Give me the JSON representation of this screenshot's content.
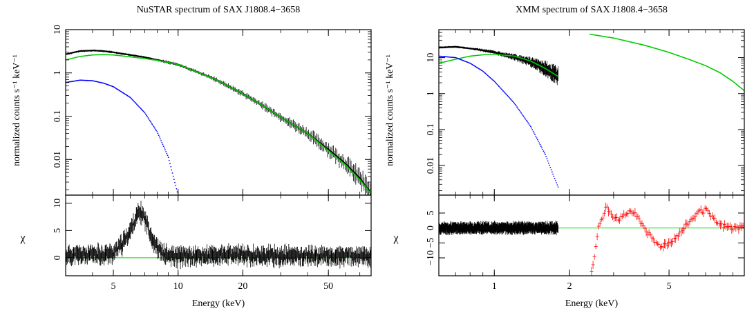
{
  "chart_data": [
    {
      "type": "line",
      "title": "NuSTAR spectrum of SAX J1808.4−3658",
      "xlabel": "Energy (keV)",
      "ylabel": "normalized counts s⁻¹ keV⁻¹",
      "xscale": "log",
      "yscale": "log",
      "xlim": [
        3,
        79
      ],
      "ylim": [
        0.0015,
        10
      ],
      "x_ticks": [
        5,
        10,
        20,
        50
      ],
      "x_tick_labels": [
        "5",
        "10",
        "20",
        "50"
      ],
      "y_ticks": [
        0.01,
        0.1,
        1,
        10
      ],
      "y_tick_labels": [
        "0.01",
        "0.1",
        "1",
        "10"
      ],
      "series": [
        {
          "color": "#000000",
          "style": "data",
          "x": [
            3,
            3.5,
            4,
            4.5,
            5,
            6,
            7,
            8,
            9,
            10,
            12,
            15,
            20,
            25,
            30,
            40,
            50,
            60,
            70,
            79
          ],
          "y": [
            2.7,
            3.2,
            3.3,
            3.2,
            3.0,
            2.6,
            2.3,
            2.0,
            1.75,
            1.55,
            1.1,
            0.7,
            0.33,
            0.17,
            0.095,
            0.04,
            0.017,
            0.008,
            0.0037,
            0.0016
          ]
        },
        {
          "color": "#00cc00",
          "style": "model",
          "x": [
            3,
            3.5,
            4,
            4.5,
            5,
            6,
            7,
            8,
            9,
            10,
            12,
            15,
            20,
            25,
            30,
            40,
            50,
            60,
            70,
            79
          ],
          "y": [
            2.0,
            2.4,
            2.6,
            2.65,
            2.6,
            2.35,
            2.15,
            1.95,
            1.75,
            1.55,
            1.1,
            0.7,
            0.33,
            0.17,
            0.095,
            0.04,
            0.016,
            0.0075,
            0.0034,
            0.0016
          ]
        },
        {
          "color": "#0000ff",
          "style": "dotted",
          "x": [
            3,
            3.5,
            4,
            4.5,
            5,
            6,
            7,
            8,
            9,
            10
          ],
          "y": [
            0.6,
            0.68,
            0.66,
            0.58,
            0.48,
            0.27,
            0.12,
            0.043,
            0.0115,
            0.0015
          ]
        }
      ]
    },
    {
      "type": "scatter",
      "ylabel": "χ",
      "xscale": "log",
      "xlim": [
        3,
        79
      ],
      "ylim": [
        -3.3,
        11.5
      ],
      "y_ticks": [
        0,
        5,
        10
      ],
      "y_tick_labels": [
        "0",
        "5",
        "10"
      ],
      "baseline": 0,
      "series": [
        {
          "color": "#000000",
          "style": "residuals",
          "x": [
            3,
            4,
            5,
            5.5,
            6,
            6.3,
            6.6,
            6.9,
            7.2,
            7.6,
            8.0,
            8.5,
            9,
            10,
            15,
            20,
            30,
            40,
            50,
            79
          ],
          "y": [
            0.5,
            0.5,
            0.8,
            2.5,
            5.0,
            7.0,
            8.3,
            7.8,
            6.0,
            3.5,
            1.8,
            0.8,
            0.3,
            0.2,
            0.4,
            0.5,
            0.3,
            0.4,
            0.3,
            0.2
          ]
        }
      ]
    },
    {
      "type": "line",
      "title": "XMM spectrum of SAX J1808.4−3658",
      "xlabel": "Energy (keV)",
      "ylabel": "normalized counts s⁻¹ keV⁻¹",
      "xscale": "log",
      "yscale": "log",
      "xlim": [
        0.6,
        10
      ],
      "ylim": [
        0.0015,
        60
      ],
      "x_ticks": [
        1,
        2,
        5
      ],
      "x_tick_labels": [
        "1",
        "2",
        "5"
      ],
      "y_ticks": [
        0.01,
        0.1,
        1,
        10
      ],
      "y_tick_labels": [
        "0.01",
        "0.1",
        "1",
        "10"
      ],
      "series": [
        {
          "color": "#000000",
          "style": "data",
          "x": [
            0.6,
            0.7,
            0.8,
            0.9,
            1.0,
            1.2,
            1.4,
            1.6,
            1.8
          ],
          "y": [
            19,
            20,
            18,
            16,
            14,
            10.5,
            7.5,
            5.0,
            3.0
          ]
        },
        {
          "color": "#00cc00",
          "style": "model",
          "x": [
            0.6,
            0.7,
            0.8,
            0.9,
            1.0,
            1.2,
            1.4,
            1.6,
            1.8
          ],
          "y": [
            7,
            9,
            11,
            12,
            12.5,
            11,
            8,
            5,
            3.0
          ]
        },
        {
          "color": "#00cc00",
          "style": "model",
          "x": [
            2.4,
            3,
            4,
            5,
            6,
            7,
            8,
            9,
            10
          ],
          "y": [
            45,
            35,
            22,
            14,
            9,
            6,
            3.8,
            2.2,
            1.2
          ]
        },
        {
          "color": "#0000ff",
          "style": "dotted",
          "x": [
            0.6,
            0.7,
            0.8,
            0.9,
            1.0,
            1.2,
            1.4,
            1.6,
            1.8
          ],
          "y": [
            11,
            10,
            7,
            4.2,
            2.2,
            0.55,
            0.12,
            0.02,
            0.0025
          ]
        }
      ]
    },
    {
      "type": "scatter",
      "ylabel": "χ",
      "xscale": "log",
      "xlim": [
        0.6,
        10
      ],
      "ylim": [
        -16,
        11
      ],
      "y_ticks": [
        -10,
        -5,
        0,
        5
      ],
      "y_tick_labels": [
        "−10",
        "−5",
        "0",
        "5"
      ],
      "baseline": 0,
      "series": [
        {
          "color": "#000000",
          "style": "band",
          "x": [
            0.6,
            1.8
          ],
          "y": [
            0,
            0
          ]
        },
        {
          "color": "#ff0000",
          "style": "residuals",
          "x": [
            2.45,
            2.5,
            2.6,
            2.7,
            2.8,
            3.0,
            3.2,
            3.5,
            3.8,
            4.0,
            4.3,
            4.6,
            5.0,
            5.5,
            6.0,
            6.5,
            7.0,
            7.5,
            8.0,
            9.0,
            10
          ],
          "y": [
            -14,
            -11,
            0,
            3,
            7,
            4,
            3,
            6,
            3,
            0,
            -4,
            -6,
            -5,
            -2,
            2,
            5,
            6,
            3,
            1,
            0,
            0
          ]
        }
      ]
    }
  ]
}
